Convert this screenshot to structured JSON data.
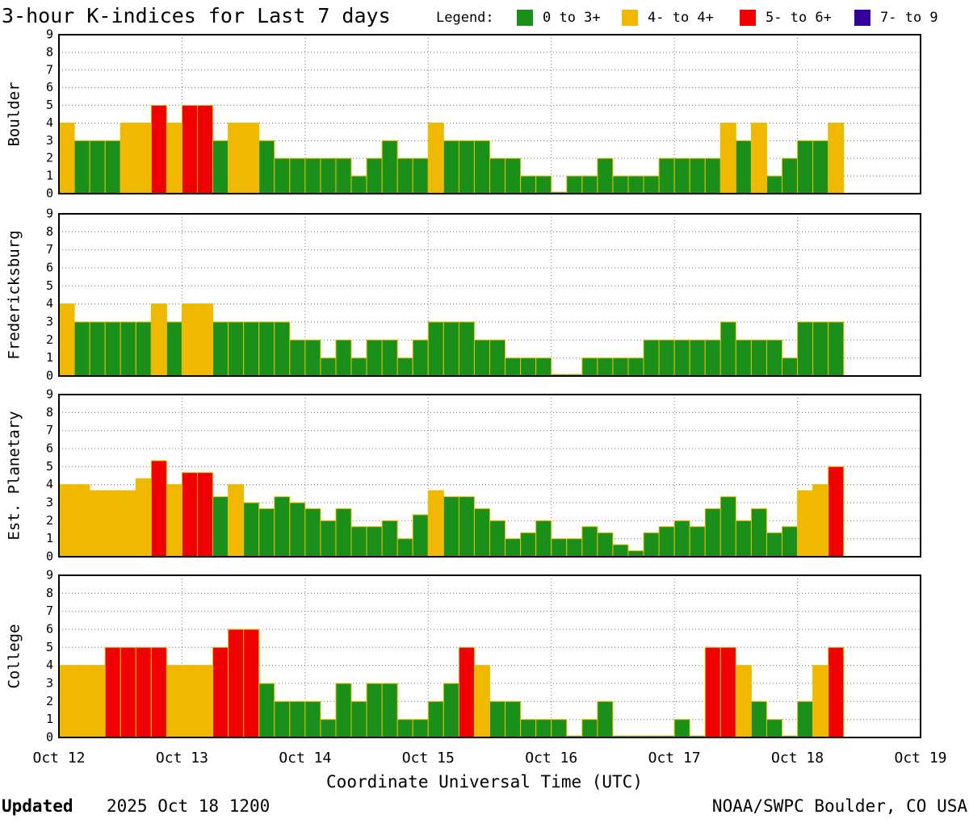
{
  "header": {
    "title": "3-hour K-indices for Last 7 days",
    "legend_label": "Legend:",
    "legend": [
      {
        "name": "0 to 3+",
        "color": "#1a8f1a"
      },
      {
        "name": "4- to 4+",
        "color": "#f0b800"
      },
      {
        "name": "5- to 6+",
        "color": "#f00000"
      },
      {
        "name": "7- to 9",
        "color": "#330099"
      }
    ]
  },
  "xaxis": {
    "label": "Coordinate Universal Time (UTC)",
    "ticks": [
      "Oct 12",
      "Oct 13",
      "Oct 14",
      "Oct 15",
      "Oct 16",
      "Oct 17",
      "Oct 18",
      "Oct 19"
    ]
  },
  "footer": {
    "updated": "Updated",
    "date": "2025 Oct 18 1200",
    "source": "NOAA/SWPC Boulder, CO USA"
  },
  "chart_data": [
    {
      "type": "bar",
      "ylabel": "Boulder",
      "ylim": [
        0,
        9
      ],
      "yticks": [
        0,
        1,
        2,
        3,
        4,
        5,
        6,
        7,
        8,
        9
      ],
      "grid": true,
      "values": [
        4,
        3,
        3,
        3,
        4,
        4,
        5,
        4,
        5,
        5,
        3,
        4,
        4,
        3,
        2,
        2,
        2,
        2,
        2,
        1,
        2,
        3,
        2,
        2,
        4,
        3,
        3,
        3,
        2,
        2,
        1,
        1,
        0,
        1,
        1,
        2,
        1,
        1,
        1,
        2,
        2,
        2,
        2,
        4,
        3,
        4,
        1,
        2,
        3,
        3,
        4,
        null,
        null,
        null,
        null,
        null
      ],
      "colors": [
        "#f0b800",
        "#1a8f1a",
        "#1a8f1a",
        "#1a8f1a",
        "#f0b800",
        "#f0b800",
        "#f00000",
        "#f0b800",
        "#f00000",
        "#f00000",
        "#1a8f1a",
        "#f0b800",
        "#f0b800",
        "#1a8f1a",
        "#1a8f1a",
        "#1a8f1a",
        "#1a8f1a",
        "#1a8f1a",
        "#1a8f1a",
        "#1a8f1a",
        "#1a8f1a",
        "#1a8f1a",
        "#1a8f1a",
        "#1a8f1a",
        "#f0b800",
        "#1a8f1a",
        "#1a8f1a",
        "#1a8f1a",
        "#1a8f1a",
        "#1a8f1a",
        "#1a8f1a",
        "#1a8f1a",
        "#1a8f1a",
        "#1a8f1a",
        "#1a8f1a",
        "#1a8f1a",
        "#1a8f1a",
        "#1a8f1a",
        "#1a8f1a",
        "#1a8f1a",
        "#1a8f1a",
        "#1a8f1a",
        "#1a8f1a",
        "#f0b800",
        "#1a8f1a",
        "#f0b800",
        "#1a8f1a",
        "#1a8f1a",
        "#1a8f1a",
        "#1a8f1a",
        "#f0b800",
        null,
        null,
        null,
        null,
        null
      ]
    },
    {
      "type": "bar",
      "ylabel": "Fredericksburg",
      "ylim": [
        0,
        9
      ],
      "yticks": [
        0,
        1,
        2,
        3,
        4,
        5,
        6,
        7,
        8,
        9
      ],
      "grid": true,
      "values": [
        4,
        3,
        3,
        3,
        3,
        3,
        4,
        3,
        4,
        4,
        3,
        3,
        3,
        3,
        3,
        2,
        2,
        1,
        2,
        1,
        2,
        2,
        1,
        2,
        3,
        3,
        3,
        2,
        2,
        1,
        1,
        1,
        0,
        0,
        1,
        1,
        1,
        1,
        2,
        2,
        2,
        2,
        2,
        3,
        2,
        2,
        2,
        1,
        3,
        3,
        3,
        null,
        null,
        null,
        null,
        null
      ],
      "colors": [
        "#f0b800",
        "#1a8f1a",
        "#1a8f1a",
        "#1a8f1a",
        "#1a8f1a",
        "#1a8f1a",
        "#f0b800",
        "#1a8f1a",
        "#f0b800",
        "#f0b800",
        "#1a8f1a",
        "#1a8f1a",
        "#1a8f1a",
        "#1a8f1a",
        "#1a8f1a",
        "#1a8f1a",
        "#1a8f1a",
        "#1a8f1a",
        "#1a8f1a",
        "#1a8f1a",
        "#1a8f1a",
        "#1a8f1a",
        "#1a8f1a",
        "#1a8f1a",
        "#1a8f1a",
        "#1a8f1a",
        "#1a8f1a",
        "#1a8f1a",
        "#1a8f1a",
        "#1a8f1a",
        "#1a8f1a",
        "#1a8f1a",
        "#1a8f1a",
        "#1a8f1a",
        "#1a8f1a",
        "#1a8f1a",
        "#1a8f1a",
        "#1a8f1a",
        "#1a8f1a",
        "#1a8f1a",
        "#1a8f1a",
        "#1a8f1a",
        "#1a8f1a",
        "#1a8f1a",
        "#1a8f1a",
        "#1a8f1a",
        "#1a8f1a",
        "#1a8f1a",
        "#1a8f1a",
        "#1a8f1a",
        "#1a8f1a",
        null,
        null,
        null,
        null,
        null
      ]
    },
    {
      "type": "bar",
      "ylabel": "Est. Planetary",
      "ylim": [
        0,
        9
      ],
      "yticks": [
        0,
        1,
        2,
        3,
        4,
        5,
        6,
        7,
        8,
        9
      ],
      "grid": true,
      "values": [
        4,
        4,
        3.67,
        3.67,
        3.67,
        4.33,
        5.33,
        4,
        4.67,
        4.67,
        3.33,
        4,
        3,
        2.67,
        3.33,
        3,
        2.67,
        2,
        2.67,
        1.67,
        1.67,
        2,
        1,
        2.33,
        3.67,
        3.33,
        3.33,
        2.67,
        2,
        1,
        1.33,
        2,
        1,
        1,
        1.67,
        1.33,
        0.67,
        0.33,
        1.33,
        1.67,
        2,
        1.67,
        2.67,
        3.33,
        2,
        2.67,
        1.33,
        1.67,
        3.67,
        4,
        5,
        null,
        null,
        null,
        null,
        null
      ],
      "colors": [
        "#f0b800",
        "#f0b800",
        "#f0b800",
        "#f0b800",
        "#f0b800",
        "#f0b800",
        "#f00000",
        "#f0b800",
        "#f00000",
        "#f00000",
        "#1a8f1a",
        "#f0b800",
        "#1a8f1a",
        "#1a8f1a",
        "#1a8f1a",
        "#1a8f1a",
        "#1a8f1a",
        "#1a8f1a",
        "#1a8f1a",
        "#1a8f1a",
        "#1a8f1a",
        "#1a8f1a",
        "#1a8f1a",
        "#1a8f1a",
        "#f0b800",
        "#1a8f1a",
        "#1a8f1a",
        "#1a8f1a",
        "#1a8f1a",
        "#1a8f1a",
        "#1a8f1a",
        "#1a8f1a",
        "#1a8f1a",
        "#1a8f1a",
        "#1a8f1a",
        "#1a8f1a",
        "#1a8f1a",
        "#1a8f1a",
        "#1a8f1a",
        "#1a8f1a",
        "#1a8f1a",
        "#1a8f1a",
        "#1a8f1a",
        "#1a8f1a",
        "#1a8f1a",
        "#1a8f1a",
        "#1a8f1a",
        "#1a8f1a",
        "#f0b800",
        "#f0b800",
        "#f00000",
        null,
        null,
        null,
        null,
        null
      ]
    },
    {
      "type": "bar",
      "ylabel": "College",
      "ylim": [
        0,
        9
      ],
      "yticks": [
        0,
        1,
        2,
        3,
        4,
        5,
        6,
        7,
        8,
        9
      ],
      "grid": true,
      "values": [
        4,
        4,
        4,
        5,
        5,
        5,
        5,
        4,
        4,
        4,
        5,
        6,
        6,
        3,
        2,
        2,
        2,
        1,
        3,
        2,
        3,
        3,
        1,
        1,
        2,
        3,
        5,
        4,
        2,
        2,
        1,
        1,
        1,
        0,
        1,
        2,
        0,
        0,
        0,
        0,
        1,
        0,
        5,
        5,
        4,
        2,
        1,
        0,
        2,
        4,
        5,
        null,
        null,
        null,
        null,
        null
      ],
      "colors": [
        "#f0b800",
        "#f0b800",
        "#f0b800",
        "#f00000",
        "#f00000",
        "#f00000",
        "#f00000",
        "#f0b800",
        "#f0b800",
        "#f0b800",
        "#f00000",
        "#f00000",
        "#f00000",
        "#1a8f1a",
        "#1a8f1a",
        "#1a8f1a",
        "#1a8f1a",
        "#1a8f1a",
        "#1a8f1a",
        "#1a8f1a",
        "#1a8f1a",
        "#1a8f1a",
        "#1a8f1a",
        "#1a8f1a",
        "#1a8f1a",
        "#1a8f1a",
        "#f00000",
        "#f0b800",
        "#1a8f1a",
        "#1a8f1a",
        "#1a8f1a",
        "#1a8f1a",
        "#1a8f1a",
        "#1a8f1a",
        "#1a8f1a",
        "#1a8f1a",
        "#1a8f1a",
        "#1a8f1a",
        "#1a8f1a",
        "#1a8f1a",
        "#1a8f1a",
        "#1a8f1a",
        "#f00000",
        "#f00000",
        "#f0b800",
        "#1a8f1a",
        "#1a8f1a",
        "#1a8f1a",
        "#1a8f1a",
        "#f0b800",
        "#f00000",
        null,
        null,
        null,
        null,
        null
      ]
    }
  ]
}
